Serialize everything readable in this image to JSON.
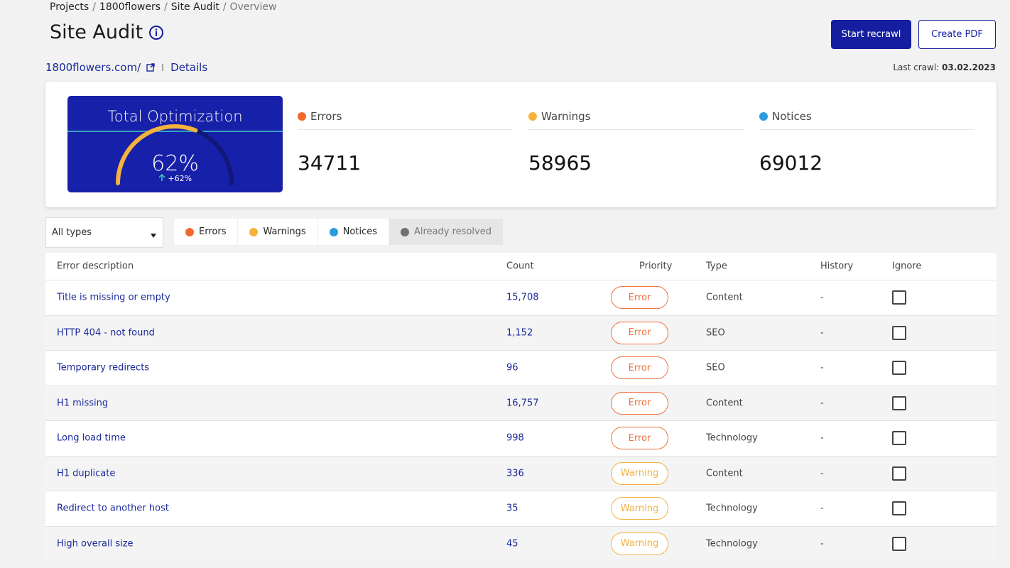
{
  "breadcrumb": {
    "items": [
      "Projects",
      "1800flowers",
      "Site Audit",
      "Overview"
    ],
    "separator": "/"
  },
  "header": {
    "title": "Site Audit",
    "buttons": [
      "Start recrawl",
      "Create PDF"
    ]
  },
  "site": {
    "url": "1800flowers.com/",
    "details": "Details",
    "last_crawl_label": "Last crawl:",
    "last_crawl_date": "03.02.2023"
  },
  "optimization": {
    "title": "Total Optimization",
    "score": {
      "value": 62,
      "label": "62%"
    },
    "change": "+62%"
  },
  "stats": [
    {
      "name": "Errors",
      "value": "34711",
      "color": "#f26a2e"
    },
    {
      "name": "Warnings",
      "value": "58965",
      "color": "#f5b23c"
    },
    {
      "name": "Notices",
      "value": "69012",
      "color": "#2e9be0"
    }
  ],
  "filters": {
    "select": "All types",
    "tabs": [
      {
        "name": "Errors",
        "color": "#f26a2e"
      },
      {
        "name": "Warnings",
        "color": "#f5b23c"
      },
      {
        "name": "Notices",
        "color": "#2e9be0"
      },
      {
        "name": "Already resolved",
        "color": "#707070"
      }
    ]
  },
  "table": {
    "columns": [
      "Error description",
      "Count",
      "Priority",
      "Type",
      "History",
      "Ignore"
    ],
    "priority_colors": {
      "Error": "#f0733f",
      "Warning": "#f2b33f"
    },
    "rows": [
      [
        "Title is missing or empty",
        "15,708",
        "Error",
        "Content",
        "-"
      ],
      [
        "HTTP 404 - not found",
        "1,152",
        "Error",
        "SEO",
        "-"
      ],
      [
        "Temporary redirects",
        "96",
        "Error",
        "SEO",
        "-"
      ],
      [
        "H1 missing",
        "16,757",
        "Error",
        "Content",
        "-"
      ],
      [
        "Long load time",
        "998",
        "Error",
        "Technology",
        "-"
      ],
      [
        "H1 duplicate",
        "336",
        "Warning",
        "Content",
        "-"
      ],
      [
        "Redirect to another host",
        "35",
        "Warning",
        "Technology",
        "-"
      ],
      [
        "High overall size",
        "45",
        "Warning",
        "Technology",
        "-"
      ]
    ]
  }
}
